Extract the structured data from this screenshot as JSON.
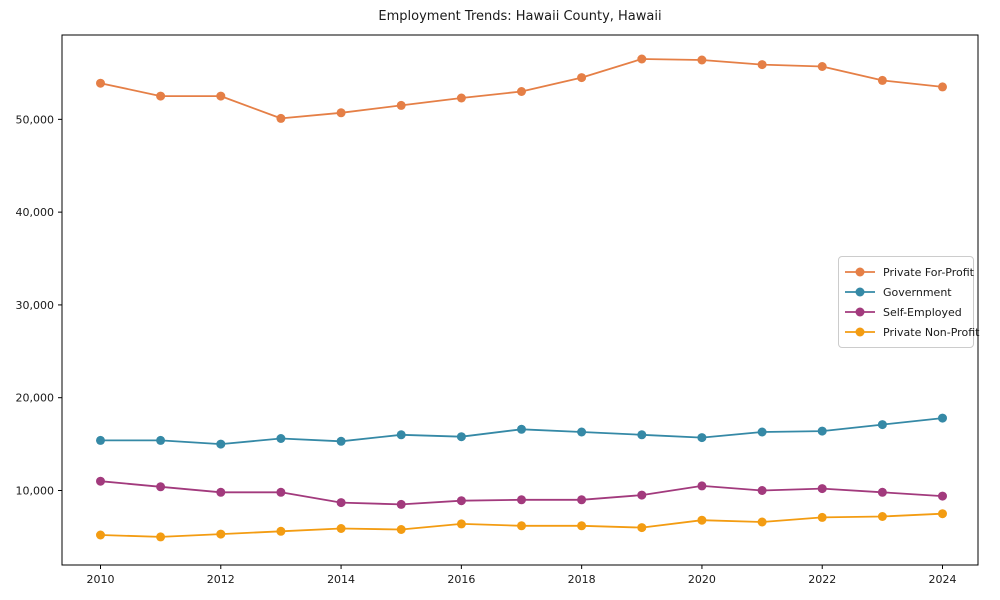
{
  "chart_data": {
    "type": "line",
    "title": "Employment Trends: Hawaii County, Hawaii",
    "xlabel": "",
    "ylabel": "",
    "grid": false,
    "legend_position": "center-right",
    "x": [
      2010,
      2011,
      2012,
      2013,
      2014,
      2015,
      2016,
      2017,
      2018,
      2019,
      2020,
      2021,
      2022,
      2023,
      2024
    ],
    "series": [
      {
        "name": "Private For-Profit",
        "color": "#e57f46",
        "values": [
          53900,
          52500,
          52500,
          50100,
          50700,
          51500,
          52300,
          53000,
          54500,
          56500,
          56400,
          55900,
          55700,
          54200,
          53500
        ]
      },
      {
        "name": "Government",
        "color": "#3589a6",
        "values": [
          15400,
          15400,
          15000,
          15600,
          15300,
          16000,
          15800,
          16600,
          16300,
          16000,
          15700,
          16300,
          16400,
          17100,
          17800
        ]
      },
      {
        "name": "Self-Employed",
        "color": "#a23a7d",
        "values": [
          11000,
          10400,
          9800,
          9800,
          8700,
          8500,
          8900,
          9000,
          9000,
          9500,
          10500,
          10000,
          10200,
          9800,
          9400
        ]
      },
      {
        "name": "Private Non-Profit",
        "color": "#f39c12",
        "values": [
          5200,
          5000,
          5300,
          5600,
          5900,
          5800,
          6400,
          6200,
          6200,
          6000,
          6800,
          6600,
          7100,
          7200,
          7500
        ]
      }
    ],
    "xticks": [
      2010,
      2012,
      2014,
      2016,
      2018,
      2020,
      2022,
      2024
    ],
    "xtick_labels": [
      "2010",
      "2012",
      "2014",
      "2016",
      "2018",
      "2020",
      "2022",
      "2024"
    ],
    "yticks": [
      10000,
      20000,
      30000,
      40000,
      50000
    ],
    "ytick_labels": [
      "10,000",
      "20,000",
      "30,000",
      "40,000",
      "50,000"
    ],
    "xlim": [
      2009.36,
      2024.59
    ],
    "ylim": [
      1970,
      59090
    ],
    "axis_color": "#000000",
    "background_color": "#ffffff"
  }
}
